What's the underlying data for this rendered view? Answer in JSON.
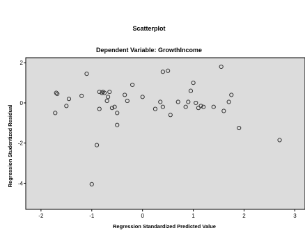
{
  "chart_data": {
    "type": "scatter",
    "title": "Scatterplot",
    "subtitle": "Dependent Variable: GrowthIncome",
    "xlabel": "Regression Standardized Predicted Value",
    "ylabel": "Regression Studentized Residual",
    "xlim": [
      -2.3,
      3.2
    ],
    "ylim": [
      -5.3,
      2.25
    ],
    "x_ticks": [
      "-2",
      "-1",
      "0",
      "1",
      "2",
      "3"
    ],
    "y_ticks": [
      "2",
      "0",
      "-2",
      "-4"
    ],
    "grid": false,
    "plot_background": "#dcdcdc",
    "marker": "hollow-circle",
    "points": [
      {
        "x": -1.7,
        "y": 0.5
      },
      {
        "x": -1.68,
        "y": 0.45
      },
      {
        "x": -1.72,
        "y": -0.5
      },
      {
        "x": -1.5,
        "y": -0.15
      },
      {
        "x": -1.45,
        "y": 0.2
      },
      {
        "x": -1.2,
        "y": 0.35
      },
      {
        "x": -1.1,
        "y": 1.45
      },
      {
        "x": -1.0,
        "y": -4.05
      },
      {
        "x": -0.9,
        "y": -2.1
      },
      {
        "x": -0.85,
        "y": 0.55
      },
      {
        "x": -0.8,
        "y": 0.5
      },
      {
        "x": -0.78,
        "y": 0.55
      },
      {
        "x": -0.75,
        "y": 0.5
      },
      {
        "x": -0.7,
        "y": 0.1
      },
      {
        "x": -0.68,
        "y": 0.3
      },
      {
        "x": -0.65,
        "y": 0.55
      },
      {
        "x": -0.6,
        "y": -0.25
      },
      {
        "x": -0.55,
        "y": -0.2
      },
      {
        "x": -0.5,
        "y": -0.5
      },
      {
        "x": -0.5,
        "y": -1.1
      },
      {
        "x": -0.85,
        "y": -0.3
      },
      {
        "x": -0.35,
        "y": 0.4
      },
      {
        "x": -0.3,
        "y": 0.1
      },
      {
        "x": -0.2,
        "y": 0.9
      },
      {
        "x": 0.0,
        "y": 0.3
      },
      {
        "x": 0.25,
        "y": -0.3
      },
      {
        "x": 0.35,
        "y": 0.05
      },
      {
        "x": 0.4,
        "y": -0.2
      },
      {
        "x": 0.4,
        "y": 1.55
      },
      {
        "x": 0.5,
        "y": 1.6
      },
      {
        "x": 0.55,
        "y": -0.6
      },
      {
        "x": 0.7,
        "y": 0.05
      },
      {
        "x": 0.85,
        "y": -0.2
      },
      {
        "x": 0.9,
        "y": 0.05
      },
      {
        "x": 0.95,
        "y": 0.6
      },
      {
        "x": 1.0,
        "y": 1.0
      },
      {
        "x": 1.05,
        "y": 0.0
      },
      {
        "x": 1.1,
        "y": -0.25
      },
      {
        "x": 1.15,
        "y": -0.15
      },
      {
        "x": 1.2,
        "y": -0.2
      },
      {
        "x": 1.4,
        "y": -0.2
      },
      {
        "x": 1.55,
        "y": 1.8
      },
      {
        "x": 1.6,
        "y": -0.4
      },
      {
        "x": 1.7,
        "y": 0.05
      },
      {
        "x": 1.75,
        "y": 0.4
      },
      {
        "x": 1.9,
        "y": -1.25
      },
      {
        "x": 2.7,
        "y": -1.85
      }
    ]
  }
}
